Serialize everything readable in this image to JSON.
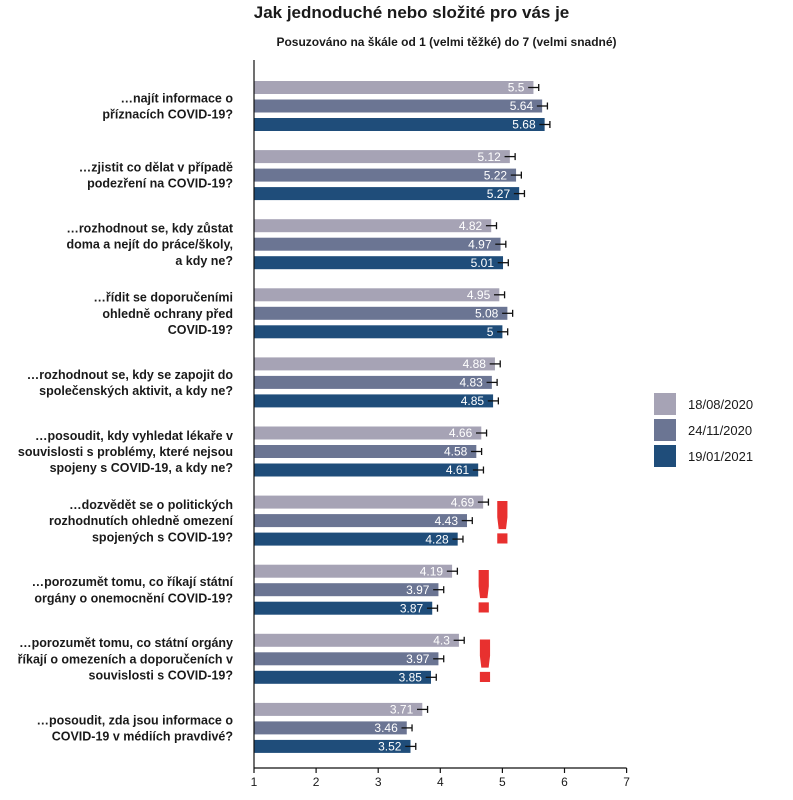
{
  "chart_data": {
    "type": "bar",
    "orientation": "horizontal",
    "title": "Jak jednoduché nebo složité pro vás je",
    "subtitle": "Posuzováno na škále od 1 (velmi těžké) do 7 (velmi snadné)",
    "xlim": [
      1,
      7
    ],
    "x_ticks": [
      "1",
      "2",
      "3",
      "4",
      "5",
      "6",
      "7"
    ],
    "legend_position": "right",
    "error_bars": true,
    "categories": [
      [
        "…najít informace o",
        "příznacích COVID-19?"
      ],
      [
        "…zjistit co dělat v případě",
        "podezření na COVID-19?"
      ],
      [
        "…rozhodnout se, kdy zůstat",
        "doma a nejít do práce/školy,",
        "a kdy ne?"
      ],
      [
        "…řídit se doporučeními",
        "ohledně ochrany před",
        "COVID-19?"
      ],
      [
        "…rozhodnout se, kdy se zapojit do",
        "společenských aktivit, a kdy ne?"
      ],
      [
        "…posoudit, kdy vyhledat lékaře v",
        "souvislosti s problémy, které nejsou",
        "spojeny s COVID-19, a kdy ne?"
      ],
      [
        "…dozvědět se o politických",
        "rozhodnutích ohledně omezení",
        "spojených s COVID-19?"
      ],
      [
        "…porozumět tomu, co říkají státní",
        "orgány o onemocnění COVID-19?"
      ],
      [
        "…porozumět tomu, co státní orgány",
        "říkají o omezeních a doporučeních v",
        "souvislosti s COVID-19?"
      ],
      [
        "…posoudit, zda jsou informace o",
        "COVID-19 v médiích pravdivé?"
      ]
    ],
    "series": [
      {
        "name": "18/08/2020",
        "color": "#a6a3b5",
        "values": [
          5.5,
          5.12,
          4.82,
          4.95,
          4.88,
          4.66,
          4.69,
          4.19,
          4.3,
          3.71
        ],
        "labels": [
          "5.5",
          "5.12",
          "4.82",
          "4.95",
          "4.88",
          "4.66",
          "4.69",
          "4.19",
          "4.3",
          "3.71"
        ]
      },
      {
        "name": "24/11/2020",
        "color": "#6b7593",
        "values": [
          5.64,
          5.22,
          4.97,
          5.08,
          4.83,
          4.58,
          4.43,
          3.97,
          3.97,
          3.46
        ],
        "labels": [
          "5.64",
          "5.22",
          "4.97",
          "5.08",
          "4.83",
          "4.58",
          "4.43",
          "3.97",
          "3.97",
          "3.46"
        ]
      },
      {
        "name": "19/01/2021",
        "color": "#1f4d7a",
        "values": [
          5.68,
          5.27,
          5.01,
          5.0,
          4.85,
          4.61,
          4.28,
          3.87,
          3.85,
          3.52
        ],
        "labels": [
          "5.68",
          "5.27",
          "5.01",
          "5",
          "4.85",
          "4.61",
          "4.28",
          "3.87",
          "3.85",
          "3.52"
        ]
      }
    ],
    "annotations": [
      {
        "text": "!",
        "group": 6,
        "color": "#e8302f"
      },
      {
        "text": "!",
        "group": 7,
        "color": "#e8302f"
      },
      {
        "text": "!",
        "group": 8,
        "color": "#e8302f"
      }
    ]
  }
}
